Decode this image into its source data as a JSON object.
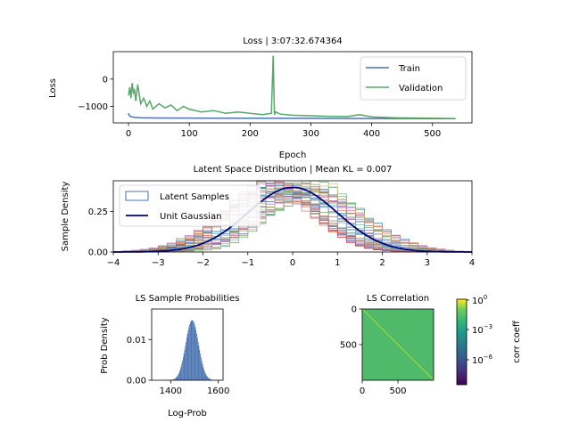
{
  "chart_data": [
    {
      "type": "line",
      "title": "Loss | 3:07:32.674364",
      "xlabel": "Epoch",
      "ylabel": "Loss",
      "xlim": [
        -25,
        565
      ],
      "ylim": [
        -1600,
        1000
      ],
      "xticks": [
        "0",
        "100",
        "200",
        "300",
        "400",
        "500"
      ],
      "yticks": [
        "0",
        "−1000"
      ],
      "legend_position": "upper-right",
      "series": [
        {
          "name": "Train",
          "color": "#4c72b0",
          "x": [
            0,
            1,
            3,
            5,
            10,
            20,
            50,
            100,
            200,
            300,
            400,
            538
          ],
          "y": [
            -1250,
            -1320,
            -1360,
            -1380,
            -1400,
            -1410,
            -1420,
            -1425,
            -1430,
            -1435,
            -1440,
            -1445
          ]
        },
        {
          "name": "Validation",
          "color": "#55a868",
          "x": [
            0,
            2,
            4,
            6,
            8,
            10,
            12,
            15,
            18,
            20,
            25,
            30,
            35,
            40,
            50,
            60,
            70,
            80,
            90,
            100,
            120,
            140,
            160,
            180,
            200,
            220,
            235,
            238,
            240,
            242,
            250,
            270,
            300,
            330,
            360,
            380,
            400,
            420,
            437,
            460,
            500,
            538
          ],
          "y": [
            -600,
            -300,
            -700,
            -150,
            -500,
            -400,
            -800,
            -200,
            -600,
            -900,
            -700,
            -1000,
            -800,
            -1100,
            -900,
            -1050,
            -950,
            -1150,
            -1000,
            -1100,
            -1200,
            -1150,
            -1250,
            -1200,
            -1250,
            -1300,
            -1250,
            850,
            -1300,
            -1200,
            -1280,
            -1320,
            -1340,
            -1360,
            -1370,
            -1300,
            -1380,
            -1400,
            -1410,
            -1420,
            -1430,
            -1440
          ]
        }
      ]
    },
    {
      "type": "line",
      "title": "Latent Space Distribution | Mean KL = 0.007",
      "ylabel": "Sample Density",
      "xlim": [
        -4,
        4
      ],
      "ylim": [
        0,
        0.44
      ],
      "xticks": [
        "−4",
        "−3",
        "−2",
        "−1",
        "0",
        "1",
        "2",
        "3",
        "4"
      ],
      "yticks": [
        "0.00",
        "0.25"
      ],
      "legend_position": "upper-left",
      "series": [
        {
          "name": "Latent Samples",
          "style": "step histograms, one per latent dimension",
          "color": "#4c72b0"
        },
        {
          "name": "Unit Gaussian",
          "color": "#000080",
          "mean": 0,
          "std": 1
        }
      ]
    },
    {
      "type": "bar",
      "title": "LS Sample Probabilities",
      "xlabel": "Log-Prob",
      "ylabel": "Prob Density",
      "xlim": [
        1320,
        1620
      ],
      "ylim": [
        0,
        0.0175
      ],
      "xticks": [
        "1400",
        "1600"
      ],
      "yticks": [
        "0.00",
        "0.01"
      ],
      "color": "#4c72b0",
      "distribution": {
        "mean": 1490,
        "std": 27
      }
    },
    {
      "type": "heatmap",
      "title": "LS Correlation",
      "xticks": [
        "0",
        "500"
      ],
      "yticks": [
        "0",
        "500"
      ],
      "size": 1000,
      "colorbar_label": "corr coeff",
      "colorbar_ticks": [
        "10^0",
        "10^−3",
        "10^−6"
      ],
      "off_diagonal_color": "#4fba6a",
      "diagonal_color": "#a6dc3a"
    }
  ]
}
